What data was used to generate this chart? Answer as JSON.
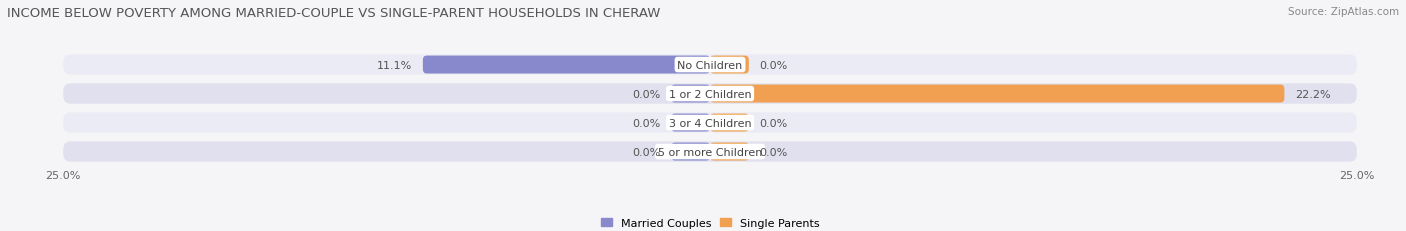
{
  "title": "INCOME BELOW POVERTY AMONG MARRIED-COUPLE VS SINGLE-PARENT HOUSEHOLDS IN CHERAW",
  "source": "Source: ZipAtlas.com",
  "categories": [
    "No Children",
    "1 or 2 Children",
    "3 or 4 Children",
    "5 or more Children"
  ],
  "married_values": [
    11.1,
    0.0,
    0.0,
    0.0
  ],
  "single_values": [
    0.0,
    22.2,
    0.0,
    0.0
  ],
  "married_color": "#8888cc",
  "single_color": "#f0a050",
  "row_bg_light": "#ebebf5",
  "row_bg_dark": "#e0e0ee",
  "axis_max": 25.0,
  "legend_labels": [
    "Married Couples",
    "Single Parents"
  ],
  "title_fontsize": 9.5,
  "source_fontsize": 7.5,
  "label_fontsize": 8,
  "value_fontsize": 8,
  "tick_fontsize": 8,
  "bar_height": 0.62,
  "background_color": "#f5f5f8",
  "center_label_color": "#ffffff",
  "stub_size": 1.5
}
